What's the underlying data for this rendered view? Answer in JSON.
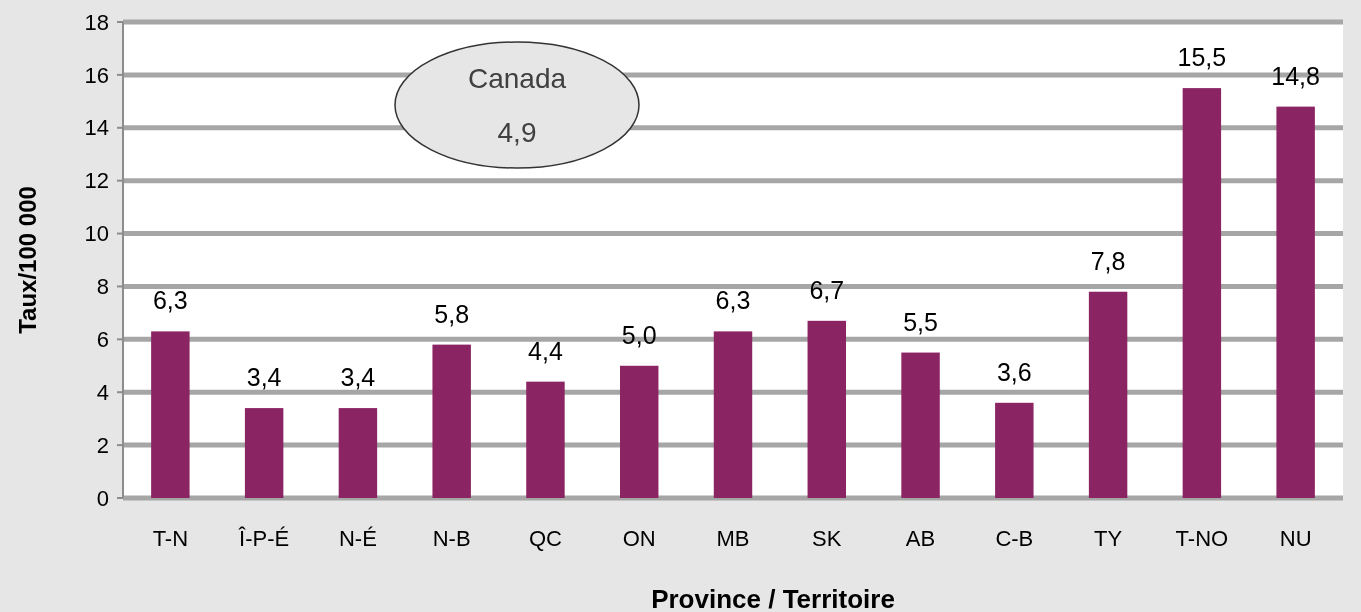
{
  "chart_data": {
    "type": "bar",
    "xlabel": "Province / Territoire",
    "ylabel": "Taux/100 000",
    "categories": [
      "T-N",
      "Î-P-É",
      "N-É",
      "N-B",
      "QC",
      "ON",
      "MB",
      "SK",
      "AB",
      "C-B",
      "TY",
      "T-NO",
      "NU"
    ],
    "values": [
      6.3,
      3.4,
      3.4,
      5.8,
      4.4,
      5.0,
      6.3,
      6.7,
      5.5,
      3.6,
      7.8,
      15.5,
      14.8
    ],
    "value_labels": [
      "6,3",
      "3,4",
      "3,4",
      "5,8",
      "4,4",
      "5,0",
      "6,3",
      "6,7",
      "5,5",
      "3,6",
      "7,8",
      "15,5",
      "14,8"
    ],
    "color": "#8b2463",
    "ylim": [
      0,
      18
    ],
    "yticks": [
      0,
      2,
      4,
      6,
      8,
      10,
      12,
      14,
      16,
      18
    ],
    "grid": "y",
    "annotations": [
      "Canada\n4,9"
    ]
  }
}
